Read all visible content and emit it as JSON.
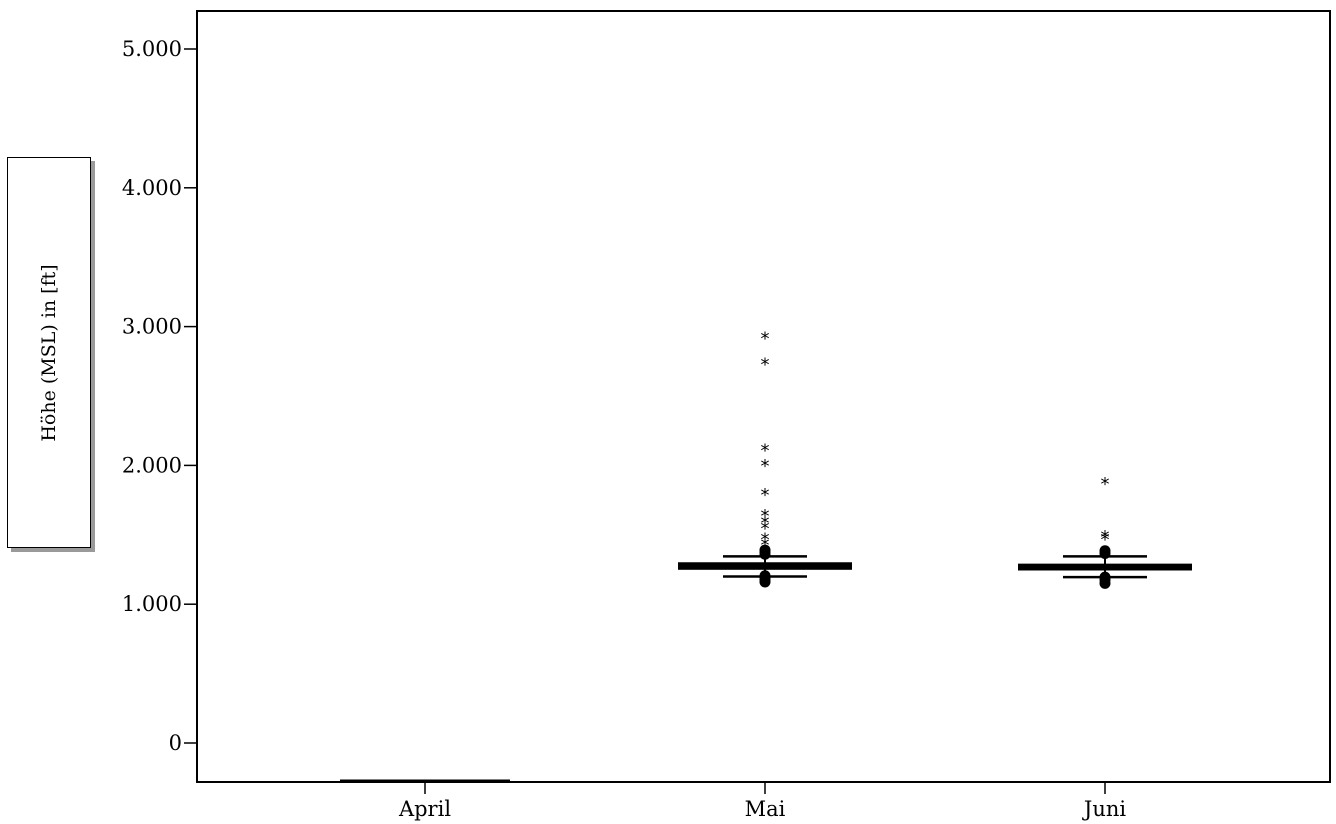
{
  "chart_data": {
    "type": "boxplot",
    "ylabel": "Höhe (MSL) in [ft]",
    "ylim": [
      -280,
      5280
    ],
    "yticks": [
      {
        "value": 0,
        "label": "0"
      },
      {
        "value": 1000,
        "label": "1.000"
      },
      {
        "value": 2000,
        "label": "2.000"
      },
      {
        "value": 3000,
        "label": "3.000"
      },
      {
        "value": 4000,
        "label": "4.000"
      },
      {
        "value": 5000,
        "label": "5.000"
      }
    ],
    "categories": [
      "April",
      "Mai",
      "Juni"
    ],
    "boxes": [
      {
        "category": "April",
        "whisker_low": -280,
        "q1": -280,
        "median": -280,
        "q3": -280,
        "whisker_high": -280,
        "outliers": [],
        "extremes": []
      },
      {
        "category": "Mai",
        "whisker_low": 1200,
        "q1": 1255,
        "median": 1275,
        "q3": 1295,
        "whisker_high": 1345,
        "outliers": [
          1160,
          1175,
          1190,
          1205,
          1360,
          1375,
          1390
        ],
        "extremes": [
          1440,
          1480,
          1560,
          1600,
          1650,
          1800,
          2010,
          2120,
          2740,
          2930
        ]
      },
      {
        "category": "Juni",
        "whisker_low": 1195,
        "q1": 1250,
        "median": 1265,
        "q3": 1285,
        "whisker_high": 1345,
        "outliers": [
          1150,
          1175,
          1195,
          1365,
          1385
        ],
        "extremes": [
          1480,
          1500,
          1880
        ]
      }
    ]
  }
}
